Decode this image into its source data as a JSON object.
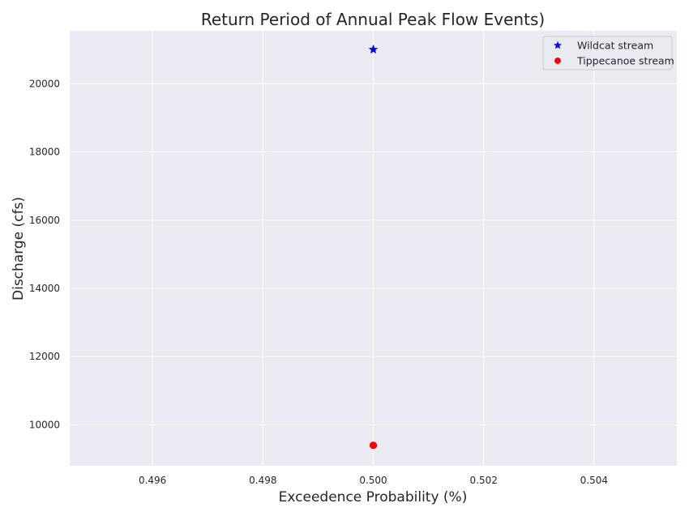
{
  "chart_data": {
    "type": "scatter",
    "title": "Return Period of Annual Peak Flow Events)",
    "xlabel": "Exceedence Probability (%)",
    "ylabel": "Discharge (cfs)",
    "xlim": [
      0.4945,
      0.5055
    ],
    "ylim": [
      8800,
      21550
    ],
    "xticks": [
      0.496,
      0.498,
      0.5,
      0.502,
      0.504
    ],
    "xtick_labels": [
      "0.496",
      "0.498",
      "0.500",
      "0.502",
      "0.504"
    ],
    "yticks": [
      10000,
      12000,
      14000,
      16000,
      18000,
      20000
    ],
    "ytick_labels": [
      "10000",
      "12000",
      "14000",
      "16000",
      "18000",
      "20000"
    ],
    "grid": true,
    "legend_position": "top-right",
    "series": [
      {
        "name": "Wildcat stream",
        "marker": "star",
        "color": "#0000ff",
        "points": [
          {
            "x": 0.5,
            "y": 21000
          }
        ]
      },
      {
        "name": "Tippecanoe stream",
        "marker": "circle",
        "color": "#ff0000",
        "points": [
          {
            "x": 0.5,
            "y": 9400
          }
        ]
      }
    ],
    "colors": {
      "plot_background": "#eaeaf2",
      "grid": "#ffffff",
      "text": "#262626"
    }
  }
}
